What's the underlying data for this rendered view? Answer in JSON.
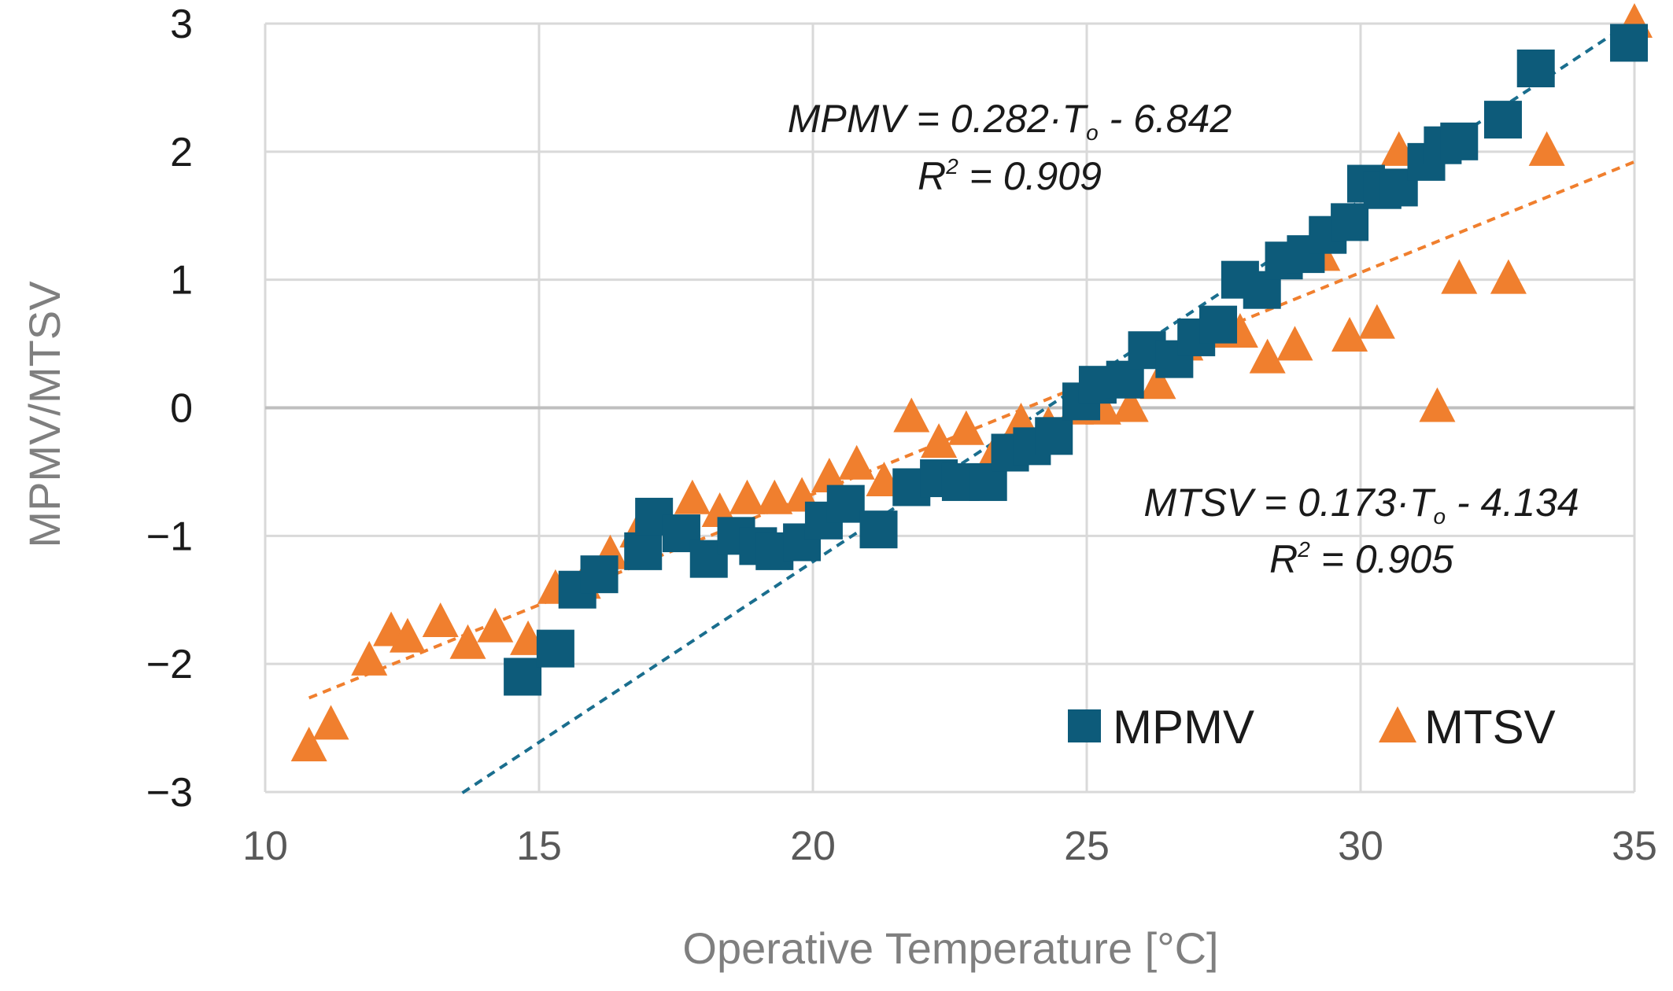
{
  "chart_data": {
    "type": "scatter",
    "title": "",
    "xlabel": "Operative Temperature [°C]",
    "ylabel": "MPMV/MTSV",
    "xlim": [
      10,
      35
    ],
    "ylim": [
      -3,
      3
    ],
    "xticks": [
      10,
      15,
      20,
      25,
      30,
      35
    ],
    "yticks": [
      3,
      2,
      1,
      0,
      -1,
      -2,
      -3
    ],
    "ytick_labels": [
      "3",
      "2",
      "1",
      "0",
      "−1",
      "−2",
      "−3"
    ],
    "grid": true,
    "legend_position": "bottom-right",
    "series": [
      {
        "name": "MPMV",
        "marker": "square",
        "color": "#0d5b7a",
        "x": [
          14.7,
          15.3,
          15.7,
          16.1,
          16.9,
          17.1,
          17.6,
          18.1,
          18.6,
          19.0,
          19.3,
          19.8,
          20.2,
          20.6,
          21.2,
          21.8,
          22.3,
          22.7,
          23.2,
          23.6,
          24.0,
          24.4,
          24.9,
          25.2,
          25.7,
          26.1,
          26.6,
          27.0,
          27.4,
          27.8,
          28.2,
          28.6,
          29.0,
          29.4,
          29.8,
          30.1,
          30.4,
          30.7,
          31.2,
          31.5,
          31.8,
          32.6,
          33.2,
          34.9
        ],
        "y": [
          -2.1,
          -1.88,
          -1.42,
          -1.3,
          -1.12,
          -0.85,
          -0.98,
          -1.18,
          -1.0,
          -1.08,
          -1.12,
          -1.05,
          -0.88,
          -0.75,
          -0.95,
          -0.62,
          -0.55,
          -0.58,
          -0.58,
          -0.35,
          -0.3,
          -0.22,
          0.05,
          0.18,
          0.22,
          0.45,
          0.38,
          0.55,
          0.65,
          1.0,
          0.92,
          1.15,
          1.2,
          1.35,
          1.45,
          1.75,
          1.7,
          1.72,
          1.92,
          2.05,
          2.08,
          2.25,
          2.65,
          2.85
        ]
      },
      {
        "name": "MTSV",
        "marker": "triangle",
        "color": "#f07f2e",
        "x": [
          10.8,
          11.2,
          11.9,
          12.3,
          12.6,
          13.2,
          13.7,
          14.2,
          14.8,
          15.3,
          15.8,
          16.3,
          16.8,
          17.3,
          17.8,
          18.3,
          18.8,
          19.3,
          19.8,
          20.3,
          20.8,
          21.3,
          21.8,
          22.3,
          22.8,
          23.3,
          23.8,
          24.3,
          24.8,
          25.3,
          25.8,
          26.3,
          26.8,
          27.3,
          27.8,
          28.3,
          28.8,
          29.3,
          29.8,
          30.3,
          30.7,
          31.4,
          31.8,
          32.7,
          33.4,
          35.0
        ],
        "y": [
          -2.65,
          -2.48,
          -1.98,
          -1.75,
          -1.8,
          -1.68,
          -1.85,
          -1.72,
          -1.82,
          -1.42,
          -1.38,
          -1.15,
          -0.98,
          -0.88,
          -0.72,
          -0.82,
          -0.72,
          -0.72,
          -0.7,
          -0.55,
          -0.45,
          -0.58,
          -0.08,
          -0.28,
          -0.18,
          -0.38,
          -0.12,
          -0.15,
          -0.02,
          -0.02,
          0.0,
          0.18,
          0.48,
          0.58,
          0.58,
          0.38,
          0.48,
          1.18,
          0.55,
          0.65,
          2.0,
          0.0,
          1.0,
          1.0,
          2.0,
          3.0
        ]
      }
    ],
    "trendlines": [
      {
        "series": "MPMV",
        "slope": 0.282,
        "intercept": -6.842,
        "color": "#1a6e8e",
        "x_range": [
          13.6,
          35.0
        ]
      },
      {
        "series": "MTSV",
        "slope": 0.173,
        "intercept": -4.134,
        "color": "#f07f2e",
        "x_range": [
          10.8,
          35.0
        ]
      }
    ],
    "annotations": {
      "mpmv_eq_lhs": "MPMV = 0.282·T",
      "mpmv_eq_sub": "o",
      "mpmv_eq_rhs": " - 6.842",
      "mpmv_r2_label": "R",
      "mpmv_r2_sup": "2",
      "mpmv_r2_value": " = 0.909",
      "mtsv_eq_lhs": "MTSV = 0.173·T",
      "mtsv_eq_sub": "o",
      "mtsv_eq_rhs": " - 4.134",
      "mtsv_r2_label": "R",
      "mtsv_r2_sup": "2",
      "mtsv_r2_value": " = 0.905"
    }
  }
}
